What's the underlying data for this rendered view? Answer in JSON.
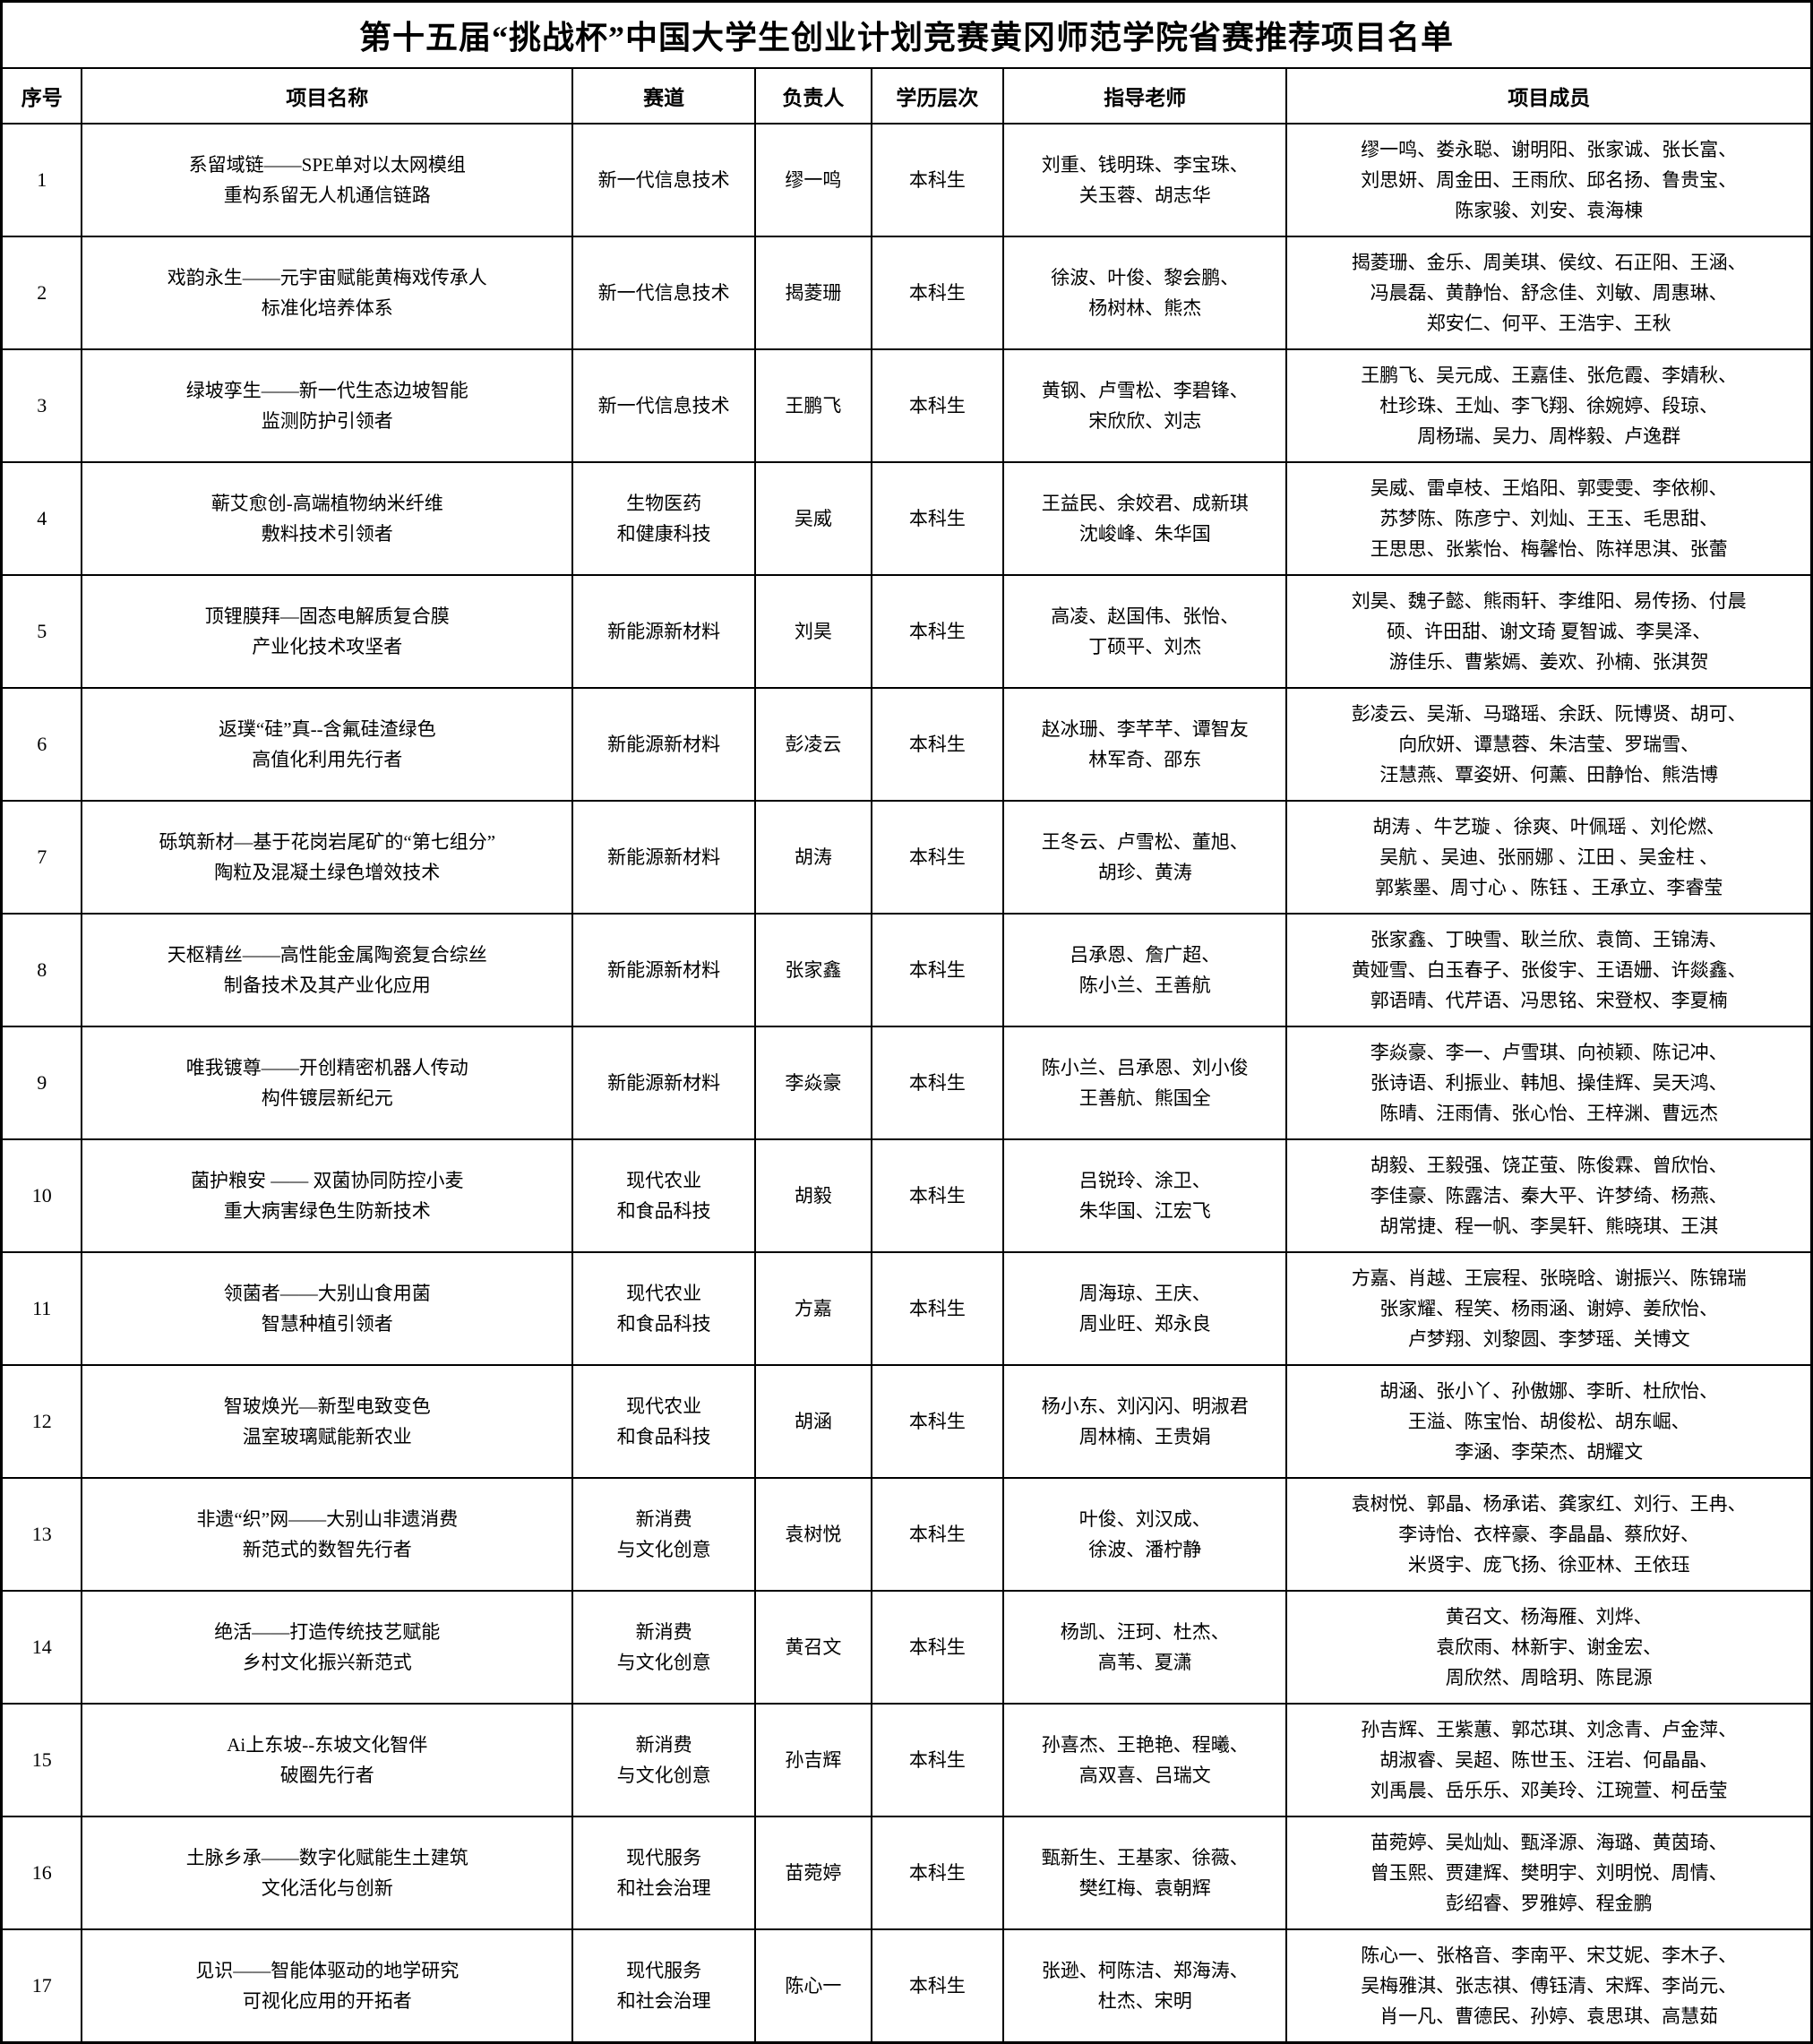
{
  "title": "第十五届“挑战杯”中国大学生创业计划竞赛黄冈师范学院省赛推荐项目名单",
  "columns": [
    "序号",
    "项目名称",
    "赛道",
    "负责人",
    "学历层次",
    "指导老师",
    "项目成员"
  ],
  "rows": [
    {
      "no": "1",
      "name": "系留域链——SPE单对以太网模组\n重构系留无人机通信链路",
      "track": "新一代信息技术",
      "leader": "缪一鸣",
      "level": "本科生",
      "advisors": "刘重、钱明珠、李宝珠、\n关玉蓉、胡志华",
      "members": "缪一鸣、娄永聪、谢明阳、张家诚、张长富、\n刘思妍、周金田、王雨欣、邱名扬、鲁贵宝、\n陈家骏、刘安、袁海棟"
    },
    {
      "no": "2",
      "name": "戏韵永生——元宇宙赋能黄梅戏传承人\n标准化培养体系",
      "track": "新一代信息技术",
      "leader": "揭菱珊",
      "level": "本科生",
      "advisors": "徐波、叶俊、黎会鹏、\n杨树林、熊杰",
      "members": "揭菱珊、金乐、周美琪、侯纹、石正阳、王涵、\n冯晨磊、黄静怡、舒念佳、刘敏、周惠琳、\n郑安仁、何平、王浩宇、王秋"
    },
    {
      "no": "3",
      "name": "绿坡孪生——新一代生态边坡智能\n监测防护引领者",
      "track": "新一代信息技术",
      "leader": "王鹏飞",
      "level": "本科生",
      "advisors": "黄钢、卢雪松、李碧锋、\n宋欣欣、刘志",
      "members": "王鹏飞、吴元成、王嘉佳、张危霞、李婧秋、\n杜珍珠、王灿、李飞翔、徐婉婷、段琼、\n周杨瑞、吴力、周桦毅、卢逸群"
    },
    {
      "no": "4",
      "name": "蕲艾愈创-高端植物纳米纤维\n敷料技术引领者",
      "track": "生物医药\n和健康科技",
      "leader": "吴威",
      "level": "本科生",
      "advisors": "王益民、余姣君、成新琪\n沈峻峰、朱华国",
      "members": "吴威、雷卓枝、王焰阳、郭雯雯、李依柳、\n苏梦陈、陈彦宁、刘灿、王玉、毛思甜、\n王思思、张紫怡、梅馨怡、陈祥思淇、张蕾"
    },
    {
      "no": "5",
      "name": "顶锂膜拜—固态电解质复合膜\n产业化技术攻坚者",
      "track": "新能源新材料",
      "leader": "刘昊",
      "level": "本科生",
      "advisors": "高凌、赵国伟、张怡、\n丁硕平、刘杰",
      "members": "刘昊、魏子懿、熊雨轩、李维阳、易传扬、付晨\n硕、许田甜、谢文琦 夏智诚、李昊泽、\n游佳乐、曹紫嫣、姜欢、孙楠、张淇贺"
    },
    {
      "no": "6",
      "name": "返璞“硅”真--含氟硅渣绿色\n高值化利用先行者",
      "track": "新能源新材料",
      "leader": "彭凌云",
      "level": "本科生",
      "advisors": "赵冰珊、李芊芊、谭智友\n林军奇、邵东",
      "members": "彭凌云、吴渐、马璐瑶、余跃、阮博贤、胡可、\n向欣妍、谭慧蓉、朱洁莹、罗瑞雪、\n汪慧燕、覃姿妍、何薰、田静怡、熊浩博"
    },
    {
      "no": "7",
      "name": "砾筑新材—基于花岗岩尾矿的“第七组分”\n陶粒及混凝土绿色增效技术",
      "track": "新能源新材料",
      "leader": "胡涛",
      "level": "本科生",
      "advisors": "王冬云、卢雪松、董旭、\n胡珍、黄涛",
      "members": "胡涛 、牛艺璇 、徐爽、叶佩瑶 、刘伦燃、\n吴航 、吴迪、张丽娜 、江田 、吴金柱 、\n郭紫墨、周寸心 、陈钰 、王承立、李睿莹"
    },
    {
      "no": "8",
      "name": "天枢精丝——高性能金属陶瓷复合综丝\n制备技术及其产业化应用",
      "track": "新能源新材料",
      "leader": "张家鑫",
      "level": "本科生",
      "advisors": "吕承恩、詹广超、\n陈小兰、王善航",
      "members": "张家鑫、丁映雪、耿兰欣、袁筒、王锦涛、\n黄娅雪、白玉春子、张俊宇、王语姗、许燚鑫、\n郭语晴、代芹语、冯思铭、宋登权、李夏楠"
    },
    {
      "no": "9",
      "name": "唯我镀尊——开创精密机器人传动\n构件镀层新纪元",
      "track": "新能源新材料",
      "leader": "李焱豪",
      "level": "本科生",
      "advisors": "陈小兰、吕承恩、刘小俊\n王善航、熊国全",
      "members": "李焱豪、李一、卢雪琪、向祯颖、陈记冲、\n张诗语、利振业、韩旭、操佳辉、吴天鸿、\n陈晴、汪雨倩、张心怡、王梓渊、曹远杰"
    },
    {
      "no": "10",
      "name": "菌护粮安 —— 双菌协同防控小麦\n重大病害绿色生防新技术",
      "track": "现代农业\n和食品科技",
      "leader": "胡毅",
      "level": "本科生",
      "advisors": "吕锐玲、涂卫、\n朱华国、江宏飞",
      "members": "胡毅、王毅强、饶芷萤、陈俊霖、曾欣怡、\n李佳豪、陈露洁、秦大平、许梦绮、杨燕、\n胡常捷、程一帆、李昊轩、熊晓琪、王淇"
    },
    {
      "no": "11",
      "name": "领菌者——大别山食用菌\n智慧种植引领者",
      "track": "现代农业\n和食品科技",
      "leader": "方嘉",
      "level": "本科生",
      "advisors": "周海琼、王庆、\n周业旺、郑永良",
      "members": "方嘉、肖越、王宸程、张晓晗、谢振兴、陈锦瑞\n张家耀、程笑、杨雨涵、谢婷、姜欣怡、\n卢梦翔、刘黎圆、李梦瑶、关博文"
    },
    {
      "no": "12",
      "name": "智玻焕光—新型电致变色\n温室玻璃赋能新农业",
      "track": "现代农业\n和食品科技",
      "leader": "胡涵",
      "level": "本科生",
      "advisors": "杨小东、刘闪闪、明淑君\n周林楠、王贵娟",
      "members": "胡涵、张小丫、孙傲娜、李昕、杜欣怡、\n王溢、陈宝怡、胡俊松、胡东崛、\n李涵、李荣杰、胡耀文"
    },
    {
      "no": "13",
      "name": "非遗“织”网——大别山非遗消费\n新范式的数智先行者",
      "track": "新消费\n与文化创意",
      "leader": "袁树悦",
      "level": "本科生",
      "advisors": "叶俊、刘汉成、\n徐波、潘柠静",
      "members": "袁树悦、郭晶、杨承诺、龚家红、刘行、王冉、\n李诗怡、衣梓豪、李晶晶、蔡欣好、\n米贤宇、庞飞扬、徐亚林、王依珏"
    },
    {
      "no": "14",
      "name": "绝活——打造传统技艺赋能\n乡村文化振兴新范式",
      "track": "新消费\n与文化创意",
      "leader": "黄召文",
      "level": "本科生",
      "advisors": "杨凯、汪珂、杜杰、\n高苇、夏潇",
      "members": "黄召文、杨海雁、刘烨、\n袁欣雨、林新宇、谢金宏、\n周欣然、周晗玥、陈昆源"
    },
    {
      "no": "15",
      "name": "Ai上东坡--东坡文化智伴\n破圈先行者",
      "track": "新消费\n与文化创意",
      "leader": "孙吉辉",
      "level": "本科生",
      "advisors": "孙喜杰、王艳艳、程曦、\n高双喜、吕瑞文",
      "members": "孙吉辉、王紫蕙、郭芯琪、刘念青、卢金萍、\n胡淑睿、吴超、陈世玉、汪岩、何晶晶、\n刘禹晨、岳乐乐、邓美玲、江琬萱、柯岳莹"
    },
    {
      "no": "16",
      "name": "土脉乡承——数字化赋能生土建筑\n文化活化与创新",
      "track": "现代服务\n和社会治理",
      "leader": "苗菀婷",
      "level": "本科生",
      "advisors": "甄新生、王基家、徐薇、\n樊红梅、袁朝辉",
      "members": "苗菀婷、吴灿灿、甄泽源、海璐、黄茵琦、\n曾玉熙、贾建辉、樊明宇、刘明悦、周情、\n彭绍睿、罗雅婷、程金鹏"
    },
    {
      "no": "17",
      "name": "见识——智能体驱动的地学研究\n可视化应用的开拓者",
      "track": "现代服务\n和社会治理",
      "leader": "陈心一",
      "level": "本科生",
      "advisors": "张逊、柯陈洁、郑海涛、\n杜杰、宋明",
      "members": "陈心一、张格音、李南平、宋艾妮、李木子、\n吴梅雅淇、张志祺、傅钰清、宋辉、李尚元、\n肖一凡、曹德民、孙婷、袁思琪、高慧茹"
    }
  ]
}
